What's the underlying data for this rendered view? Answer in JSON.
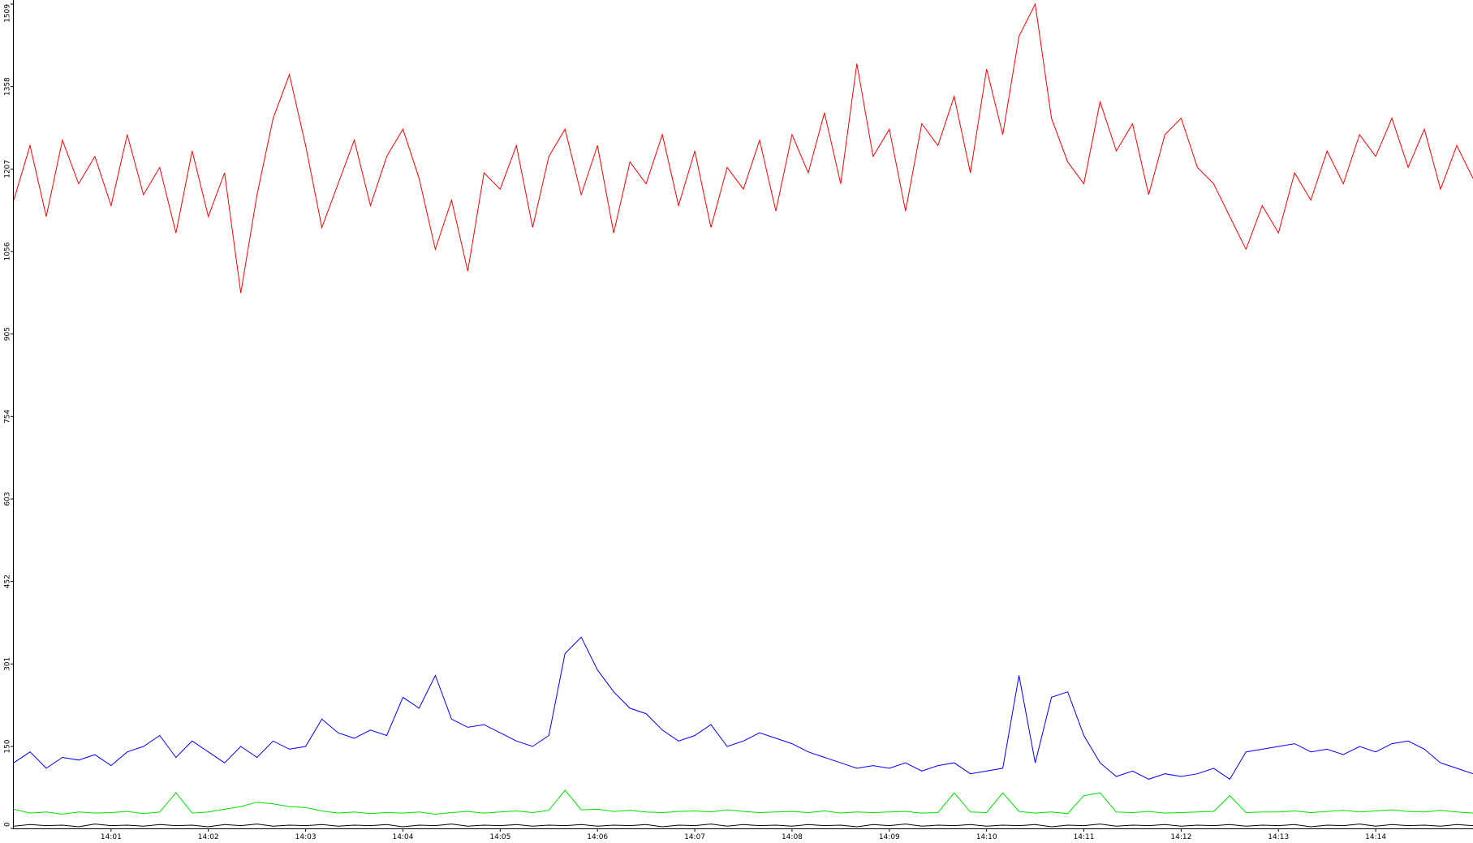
{
  "chart_data": {
    "type": "line",
    "categories": [
      null,
      null,
      null,
      null,
      null,
      null,
      "14:01",
      null,
      null,
      null,
      null,
      null,
      "14:02",
      null,
      null,
      null,
      null,
      null,
      "14:03",
      null,
      null,
      null,
      null,
      null,
      "14:04",
      null,
      null,
      null,
      null,
      null,
      "14:05",
      null,
      null,
      null,
      null,
      null,
      "14:06",
      null,
      null,
      null,
      null,
      null,
      "14:07",
      null,
      null,
      null,
      null,
      null,
      "14:08",
      null,
      null,
      null,
      null,
      null,
      "14:09",
      null,
      null,
      null,
      null,
      null,
      "14:10",
      null,
      null,
      null,
      null,
      null,
      "14:11",
      null,
      null,
      null,
      null,
      null,
      "14:12",
      null,
      null,
      null,
      null,
      null,
      "14:13",
      null,
      null,
      null,
      null,
      null,
      "14:14",
      null,
      null,
      null,
      null,
      null,
      null
    ],
    "series": [
      {
        "color": "#ff0000",
        "values": [
          1150,
          1250,
          1120,
          1260,
          1180,
          1230,
          1140,
          1270,
          1160,
          1210,
          1090,
          1240,
          1120,
          1200,
          980,
          1160,
          1300,
          1380,
          1250,
          1100,
          1180,
          1260,
          1140,
          1230,
          1280,
          1190,
          1060,
          1150,
          1020,
          1200,
          1170,
          1250,
          1100,
          1230,
          1280,
          1160,
          1250,
          1090,
          1220,
          1180,
          1270,
          1140,
          1240,
          1100,
          1210,
          1170,
          1260,
          1130,
          1270,
          1200,
          1310,
          1180,
          1400,
          1230,
          1280,
          1130,
          1290,
          1250,
          1340,
          1200,
          1390,
          1270,
          1450,
          1509,
          1300,
          1220,
          1180,
          1330,
          1240,
          1290,
          1160,
          1270,
          1300,
          1210,
          1180,
          1120,
          1060,
          1140,
          1090,
          1200,
          1150,
          1240,
          1180,
          1270,
          1230,
          1300,
          1210,
          1280,
          1170,
          1250,
          1190
        ]
      },
      {
        "color": "#0000ff",
        "values": [
          120,
          140,
          110,
          130,
          125,
          135,
          115,
          140,
          150,
          170,
          130,
          160,
          140,
          120,
          150,
          130,
          160,
          145,
          150,
          200,
          175,
          165,
          180,
          170,
          240,
          220,
          280,
          200,
          185,
          190,
          175,
          160,
          150,
          170,
          320,
          350,
          290,
          250,
          220,
          210,
          180,
          160,
          170,
          190,
          150,
          160,
          175,
          165,
          155,
          140,
          130,
          120,
          110,
          115,
          110,
          120,
          105,
          115,
          120,
          100,
          105,
          110,
          280,
          120,
          240,
          250,
          170,
          120,
          95,
          105,
          90,
          100,
          95,
          100,
          110,
          90,
          140,
          145,
          150,
          155,
          140,
          145,
          135,
          150,
          140,
          155,
          160,
          145,
          120,
          110,
          100
        ]
      },
      {
        "color": "#00e000",
        "values": [
          35,
          28,
          30,
          26,
          30,
          28,
          29,
          31,
          27,
          30,
          65,
          28,
          30,
          35,
          40,
          48,
          45,
          40,
          38,
          32,
          28,
          30,
          27,
          29,
          28,
          30,
          26,
          29,
          31,
          28,
          30,
          32,
          29,
          33,
          70,
          34,
          35,
          31,
          33,
          30,
          29,
          31,
          32,
          30,
          34,
          31,
          29,
          30,
          31,
          29,
          32,
          28,
          30,
          29,
          30,
          31,
          28,
          29,
          65,
          30,
          29,
          65,
          31,
          28,
          30,
          27,
          60,
          65,
          30,
          29,
          31,
          28,
          29,
          30,
          31,
          60,
          29,
          30,
          30,
          32,
          29,
          31,
          33,
          30,
          32,
          34,
          31,
          30,
          33,
          30,
          28
        ]
      },
      {
        "color": "#000000",
        "values": [
          4,
          7,
          5,
          6,
          3,
          8,
          5,
          6,
          4,
          7,
          5,
          6,
          3,
          7,
          5,
          8,
          4,
          6,
          5,
          7,
          4,
          6,
          5,
          7,
          3,
          6,
          5,
          8,
          4,
          6,
          5,
          7,
          4,
          6,
          5,
          7,
          4,
          6,
          5,
          7,
          3,
          6,
          5,
          8,
          4,
          7,
          5,
          6,
          4,
          7,
          5,
          6,
          3,
          7,
          5,
          8,
          4,
          6,
          5,
          7,
          4,
          6,
          5,
          7,
          3,
          6,
          5,
          8,
          4,
          6,
          5,
          7,
          4,
          6,
          5,
          7,
          4,
          6,
          5,
          7,
          3,
          6,
          5,
          8,
          4,
          7,
          5,
          6,
          4,
          7,
          5
        ]
      }
    ],
    "ylim": [
      0,
      1509
    ],
    "yticks": [
      0,
      150,
      301,
      452,
      603,
      754,
      905,
      1056,
      1207,
      1358,
      1509
    ]
  }
}
